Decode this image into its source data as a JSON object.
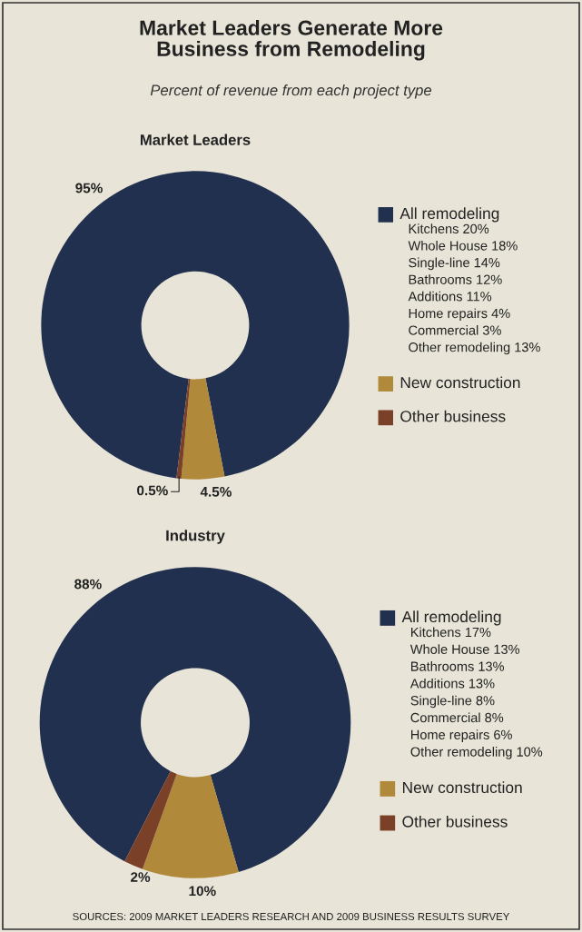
{
  "chart_data": [
    {
      "type": "other",
      "title": "Market Leaders Generate More\nBusiness from Remodeling",
      "subtitle": "Percent of revenue from each project type",
      "annotations": [
        "SOURCES: 2009 MARKET LEADERS RESEARCH AND 2009 BUSINESS RESULTS SURVEY"
      ]
    },
    {
      "type": "donut",
      "title": "Market Leaders",
      "categories": [
        "All remodeling",
        "New construction",
        "Other business"
      ],
      "values": [
        95,
        4.5,
        0.5
      ],
      "colors": [
        "#22304f",
        "#b0893a",
        "#7a4128"
      ],
      "value_labels": [
        "95%",
        "4.5%",
        "0.5%"
      ],
      "legend": "right",
      "annotations": [
        "Kitchens 20%",
        "Whole House 18%",
        "Single-line 14%",
        "Bathrooms 12%",
        "Additions 11%",
        "Home repairs 4%",
        "Commercial 3%",
        "Other remodeling 13%"
      ]
    },
    {
      "type": "donut",
      "title": "Industry",
      "categories": [
        "All remodeling",
        "New construction",
        "Other business"
      ],
      "values": [
        88,
        10,
        2
      ],
      "colors": [
        "#22304f",
        "#b0893a",
        "#7a4128"
      ],
      "value_labels": [
        "88%",
        "10%",
        "2%"
      ],
      "legend": "right",
      "annotations": [
        "Kitchens 17%",
        "Whole House 13%",
        "Bathrooms 13%",
        "Additions 13%",
        "Single-line 8%",
        "Commercial 8%",
        "Home repairs 6%",
        "Other remodeling 10%"
      ]
    }
  ]
}
